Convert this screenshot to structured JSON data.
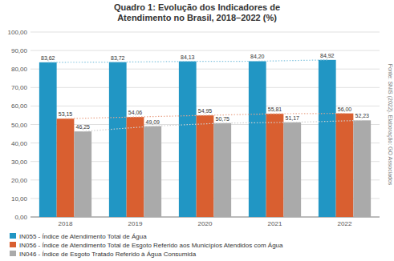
{
  "chart_data": {
    "type": "bar",
    "title": "Quadro 1: Evolução dos Indicadores de\nAtendimento no Brasil, 2018–2022 (%)",
    "categories": [
      "2018",
      "2019",
      "2020",
      "2021",
      "2022"
    ],
    "series": [
      {
        "name": "IN055 - Índice de Atendimento Total de Água",
        "color": "#2196C4",
        "values": [
          83.62,
          83.72,
          84.13,
          84.2,
          84.92
        ],
        "value_labels": [
          "83,62",
          "83,72",
          "84,13",
          "84,20",
          "84,92"
        ]
      },
      {
        "name": "IN056 - Índice de Atendimento Total de Esgoto Referido aos Municípios Atendidos com Água",
        "color": "#D95F30",
        "values": [
          53.15,
          54.06,
          54.95,
          55.81,
          56.0
        ],
        "value_labels": [
          "53,15",
          "54,06",
          "54,95",
          "55,81",
          "56,00"
        ]
      },
      {
        "name": "IN046 - Índice de Esgoto Tratado Referido à Água Consumida",
        "color": "#AAAAAA",
        "values": [
          46.25,
          49.09,
          50.75,
          51.17,
          52.23
        ],
        "value_labels": [
          "46,25",
          "49,09",
          "50,75",
          "51,17",
          "52,23"
        ]
      }
    ],
    "ylim": [
      0,
      100
    ],
    "yticks": [
      {
        "value": 0,
        "label": "0,00"
      },
      {
        "value": 10,
        "label": "10,00"
      },
      {
        "value": 20,
        "label": "20,00"
      },
      {
        "value": 30,
        "label": "30,00"
      },
      {
        "value": 40,
        "label": "40,00"
      },
      {
        "value": 50,
        "label": "50,00"
      },
      {
        "value": 60,
        "label": "60,00"
      },
      {
        "value": 70,
        "label": "70,00"
      },
      {
        "value": 80,
        "label": "80,00"
      },
      {
        "value": 90,
        "label": "90,00"
      },
      {
        "value": 100,
        "label": "100,00"
      }
    ],
    "annotations": [
      "Fonte: SNIS (2022). Elaboração: GO Associados"
    ],
    "grid": true,
    "legend": "bottom",
    "data_labels": true
  }
}
